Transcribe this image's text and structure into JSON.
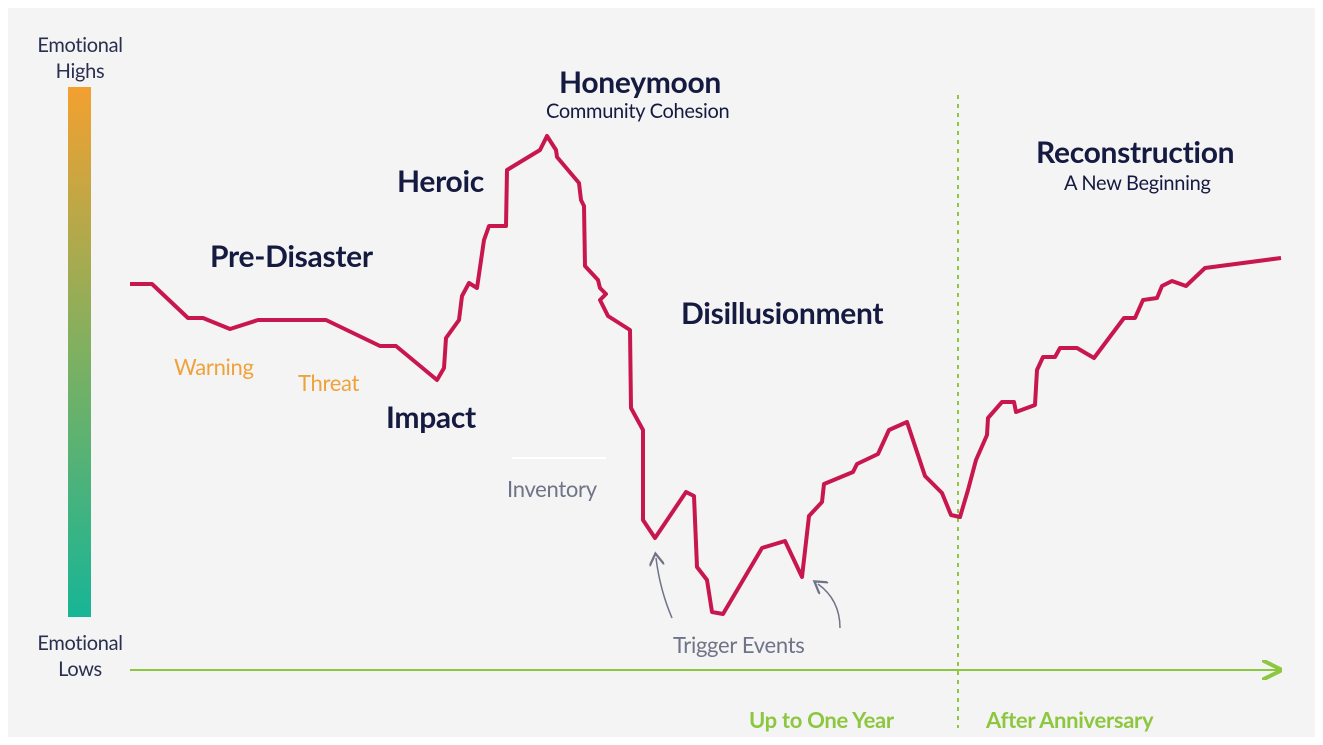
{
  "scale": {
    "high": "Emotional Highs",
    "low": "Emotional Lows"
  },
  "phases": {
    "pre_disaster": "Pre-Disaster",
    "heroic": "Heroic",
    "honeymoon": {
      "title": "Honeymoon",
      "subtitle": "Community Cohesion"
    },
    "disillusionment": "Disillusionment",
    "reconstruction": {
      "title": "Reconstruction",
      "subtitle": "A New Beginning"
    },
    "impact": "Impact"
  },
  "events": {
    "warning": "Warning",
    "threat": "Threat",
    "inventory": "Inventory",
    "triggers": "Trigger Events"
  },
  "timeline": {
    "first": "Up to One Year",
    "second": "After Anniversary"
  }
}
